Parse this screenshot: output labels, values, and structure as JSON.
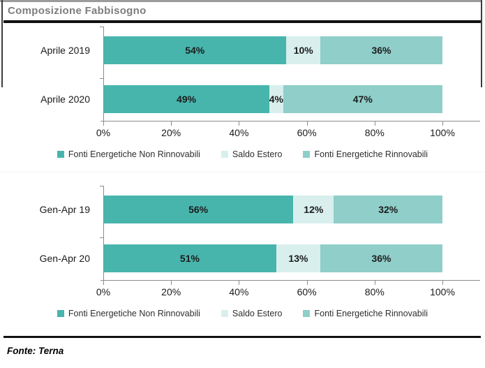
{
  "header": {
    "title": "Composizione Fabbisogno"
  },
  "footer": {
    "source": "Fonte: Terna"
  },
  "colors": {
    "non_renewable": "#48B5AD",
    "foreign_balance": "#D8EFED",
    "renewable": "#8FCEC9",
    "axis": "#8c8c8c",
    "title_gray": "#7d7d7d"
  },
  "chart_data": [
    {
      "type": "bar",
      "orientation": "horizontal",
      "stacked": true,
      "title": "",
      "categories": [
        "Aprile 2019",
        "Aprile 2020"
      ],
      "series": [
        {
          "name": "Fonti Energetiche Non Rinnovabili",
          "color": "#48B5AD",
          "values": [
            54,
            49
          ]
        },
        {
          "name": "Saldo Estero",
          "color": "#D8EFED",
          "values": [
            10,
            4
          ]
        },
        {
          "name": "Fonti Energetiche Rinnovabili",
          "color": "#8FCEC9",
          "values": [
            36,
            47
          ]
        }
      ],
      "value_suffix": "%",
      "xlim": [
        0,
        100
      ],
      "x_ticks": [
        "0%",
        "20%",
        "40%",
        "60%",
        "80%",
        "100%"
      ],
      "grid": false,
      "legend_position": "bottom"
    },
    {
      "type": "bar",
      "orientation": "horizontal",
      "stacked": true,
      "title": "",
      "categories": [
        "Gen-Apr 19",
        "Gen-Apr 20"
      ],
      "series": [
        {
          "name": "Fonti Energetiche Non Rinnovabili",
          "color": "#48B5AD",
          "values": [
            56,
            51
          ]
        },
        {
          "name": "Saldo Estero",
          "color": "#D8EFED",
          "values": [
            12,
            13
          ]
        },
        {
          "name": "Fonti Energetiche Rinnovabili",
          "color": "#8FCEC9",
          "values": [
            32,
            36
          ]
        }
      ],
      "value_suffix": "%",
      "xlim": [
        0,
        100
      ],
      "x_ticks": [
        "0%",
        "20%",
        "40%",
        "60%",
        "80%",
        "100%"
      ],
      "grid": false,
      "legend_position": "bottom"
    }
  ]
}
